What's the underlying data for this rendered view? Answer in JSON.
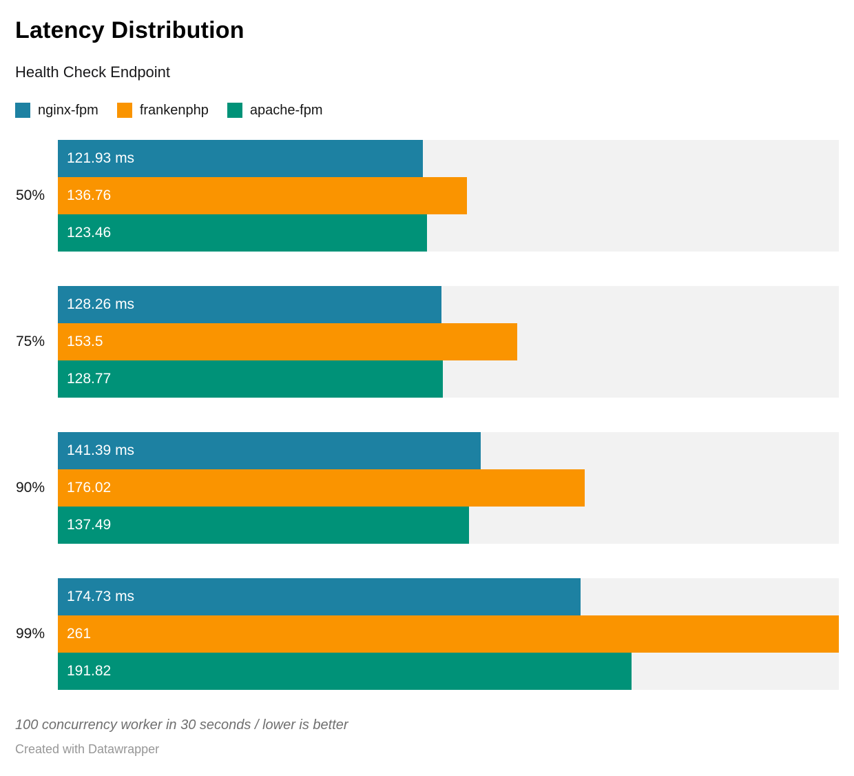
{
  "header": {
    "title": "Latency Distribution",
    "subtitle": "Health Check Endpoint"
  },
  "legend": {
    "items": [
      {
        "label": "nginx-fpm",
        "color": "#1d81a2"
      },
      {
        "label": "frankenphp",
        "color": "#fa9400"
      },
      {
        "label": "apache-fpm",
        "color": "#009278"
      }
    ]
  },
  "chart_data": {
    "type": "bar",
    "orientation": "horizontal",
    "title": "Latency Distribution",
    "subtitle": "Health Check Endpoint",
    "categories": [
      "50%",
      "75%",
      "90%",
      "99%"
    ],
    "series": [
      {
        "name": "nginx-fpm",
        "color": "#1d81a2",
        "values": [
          121.93,
          128.26,
          141.39,
          174.73
        ]
      },
      {
        "name": "frankenphp",
        "color": "#fa9400",
        "values": [
          136.76,
          153.5,
          176.02,
          261
        ]
      },
      {
        "name": "apache-fpm",
        "color": "#009278",
        "values": [
          123.46,
          128.77,
          137.49,
          191.82
        ]
      }
    ],
    "bar_labels": [
      [
        "121.93 ms",
        "136.76",
        "123.46"
      ],
      [
        "128.26 ms",
        "153.5",
        "128.77"
      ],
      [
        "141.39 ms",
        "176.02",
        "137.49"
      ],
      [
        "174.73 ms",
        "261",
        "191.82"
      ]
    ],
    "unit": "ms",
    "xlim": [
      0,
      261
    ],
    "grid": false,
    "legend_position": "top",
    "track_color": "#f2f2f2",
    "bar_label_color": "#ffffff"
  },
  "footer": {
    "note": "100 concurrency worker in 30 seconds / lower is better",
    "attribution": "Created with Datawrapper"
  }
}
